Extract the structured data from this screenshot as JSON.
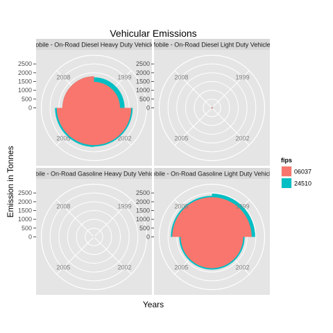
{
  "chart_data": {
    "type": "polar-area",
    "title": "Vehicular Emissions",
    "xlabel": "Years",
    "ylabel": "Emission in Tonnes",
    "theta_categories": [
      "1999",
      "2002",
      "2005",
      "2008"
    ],
    "r_ticks": [
      0,
      500,
      1000,
      1500,
      2000,
      2500
    ],
    "r_max": 3000,
    "legend": {
      "title": "fips",
      "placement": "right",
      "entries": [
        {
          "label": "06037",
          "color": "#F8766D"
        },
        {
          "label": "24510",
          "color": "#00BFC4"
        }
      ]
    },
    "panels": [
      {
        "label": "Mobile - On-Road Diesel Heavy Duty Vehicles",
        "series": [
          {
            "name": "06037",
            "values": [
              1480,
              2120,
              2120,
              1800
            ]
          },
          {
            "name": "24510",
            "values": [
              1740,
              2200,
              2220,
              1800
            ]
          }
        ]
      },
      {
        "label": "Mobile - On-Road Diesel Light Duty Vehicles",
        "series": [
          {
            "name": "06037",
            "values": [
              60,
              40,
              40,
              30
            ]
          },
          {
            "name": "24510",
            "values": [
              65,
              45,
              45,
              35
            ]
          }
        ]
      },
      {
        "label": "Mobile - On-Road Gasoline Heavy Duty Vehicles",
        "series": [
          {
            "name": "06037",
            "values": [
              25,
              20,
              20,
              15
            ]
          },
          {
            "name": "24510",
            "values": [
              30,
              25,
              25,
              20
            ]
          }
        ]
      },
      {
        "label": "Mobile - On-Road Gasoline Light Duty Vehicles",
        "series": [
          {
            "name": "06037",
            "values": [
              2260,
              1780,
              1780,
              2260
            ]
          },
          {
            "name": "24510",
            "values": [
              2460,
              1860,
              1860,
              2340
            ]
          }
        ]
      }
    ]
  }
}
